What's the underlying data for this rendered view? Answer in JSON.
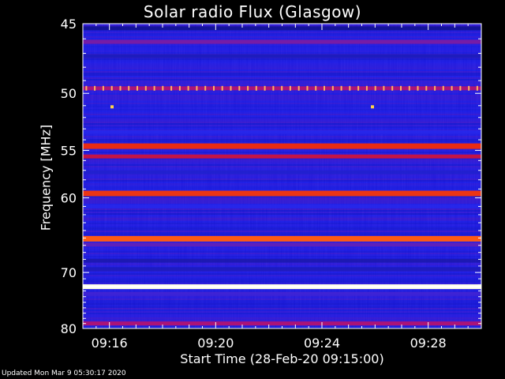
{
  "chart_data": {
    "type": "heatmap",
    "title": "Solar radio Flux (Glasgow)",
    "xlabel": "Start Time (28-Feb-20 09:15:00)",
    "ylabel": "Frequency [MHz]",
    "x_tick_labels": [
      "09:16",
      "09:20",
      "09:24",
      "09:28"
    ],
    "x_tick_minutes": [
      1,
      5,
      9,
      13
    ],
    "xlim_minutes": [
      0,
      15
    ],
    "y_tick_labels": [
      "45",
      "50",
      "55",
      "60",
      "70",
      "80"
    ],
    "y_ticks_mhz": [
      45,
      50,
      55,
      60,
      70,
      80
    ],
    "ylim_mhz": [
      45,
      80
    ],
    "y_scale": "reciprocal",
    "y_direction": "increasing-downward",
    "background_color": "#2828ee",
    "bands": [
      {
        "freq_mhz": 45.3,
        "intensity": 0.05
      },
      {
        "freq_mhz": 46.2,
        "intensity": 0.35
      },
      {
        "freq_mhz": 47.2,
        "intensity": 0.12
      },
      {
        "freq_mhz": 49.6,
        "intensity": 0.45
      },
      {
        "freq_mhz": 53.3,
        "intensity": 0.2
      },
      {
        "freq_mhz": 54.6,
        "intensity": 0.7
      },
      {
        "freq_mhz": 55.6,
        "intensity": 0.55
      },
      {
        "freq_mhz": 57.2,
        "intensity": 0.15
      },
      {
        "freq_mhz": 59.5,
        "intensity": 0.72
      },
      {
        "freq_mhz": 61.0,
        "intensity": 0.2
      },
      {
        "freq_mhz": 65.1,
        "intensity": 0.8
      },
      {
        "freq_mhz": 65.9,
        "intensity": 0.3
      },
      {
        "freq_mhz": 68.2,
        "intensity": 0.1
      },
      {
        "freq_mhz": 69.5,
        "intensity": 0.12
      },
      {
        "freq_mhz": 72.3,
        "intensity": 1.0
      },
      {
        "freq_mhz": 73.5,
        "intensity": 0.25
      },
      {
        "freq_mhz": 79.0,
        "intensity": 0.45
      }
    ],
    "spikes": [
      {
        "time_minute": 1.1,
        "freq_mhz": 51.1
      },
      {
        "time_minute": 10.9,
        "freq_mhz": 51.1
      }
    ],
    "periodic_marks_freq_mhz": 49.6
  },
  "footer": {
    "updated": "Updated Mon Mar  9 05:30:17 2020"
  }
}
